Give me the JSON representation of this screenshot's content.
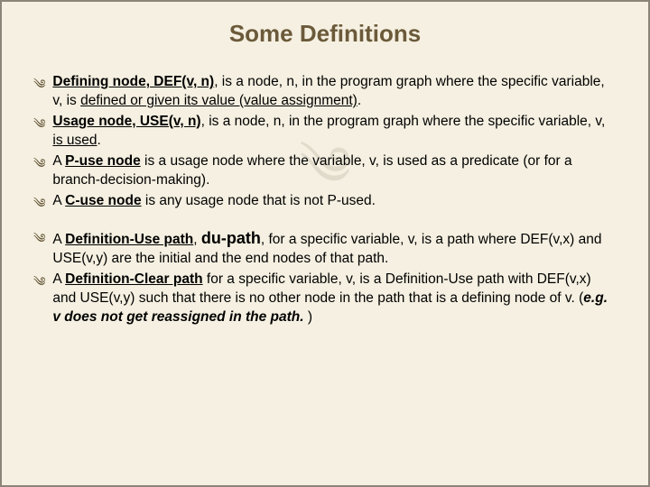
{
  "title": "Some Definitions",
  "watermark": "༄",
  "bullet_symbol": "༄",
  "group1": {
    "item1": {
      "pre": "",
      "term": "Defining node, DEF(v, n)",
      "mid1": ", is a node, n, in the program graph where the specific variable, v, is ",
      "uline": "defined or given its value (value assignment)",
      "end": "."
    },
    "item2": {
      "term": "Usage node, USE(v, n)",
      "mid1": ", is a node, n, in the program graph where the specific variable, v, ",
      "uline": "is used",
      "end": "."
    },
    "item3": {
      "pre": "A ",
      "term": "P-use node",
      "rest": " is a usage node where the variable, v, is used as a predicate (or for a branch-decision-making)."
    },
    "item4": {
      "pre": "A ",
      "term": "C-use node",
      "rest": " is any usage node that is not P-used."
    }
  },
  "group2": {
    "item1": {
      "pre": "A ",
      "term": "Definition-Use path",
      "comma": ", ",
      "dupath": "du-path",
      "rest": ", for a specific variable, v, is a path where DEF(v,x) and USE(v,y) are the initial and the end nodes of that path."
    },
    "item2": {
      "pre": "A ",
      "term": "Definition-Clear path",
      "mid": " for a specific variable, v, is a Definition-Use path with DEF(v,x) and USE(v,y) such that there is no other node in the path that is a defining node of v. (",
      "ital": "e.g.  v does not get reassigned in the path. ",
      "end": ")"
    }
  }
}
